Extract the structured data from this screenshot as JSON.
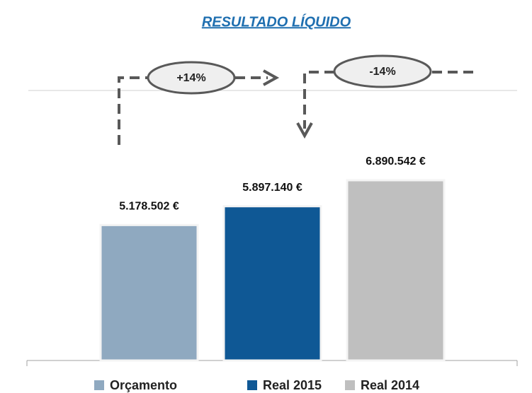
{
  "chart_data": {
    "type": "bar",
    "title": "RESULTADO LÍQUIDO",
    "series": [
      {
        "name": "Orçamento",
        "color": "#8fa9c0",
        "values": [
          5178502
        ],
        "value_labels": [
          "5.178.502 €"
        ]
      },
      {
        "name": "Real 2015",
        "color": "#0f5895",
        "values": [
          5897140
        ],
        "value_labels": [
          "5.897.140 €"
        ]
      },
      {
        "name": "Real 2014",
        "color": "#bfbfbf",
        "values": [
          6890542
        ],
        "value_labels": [
          "6.890.542 €"
        ]
      }
    ],
    "annotations": [
      "+14%",
      "-14%"
    ]
  }
}
